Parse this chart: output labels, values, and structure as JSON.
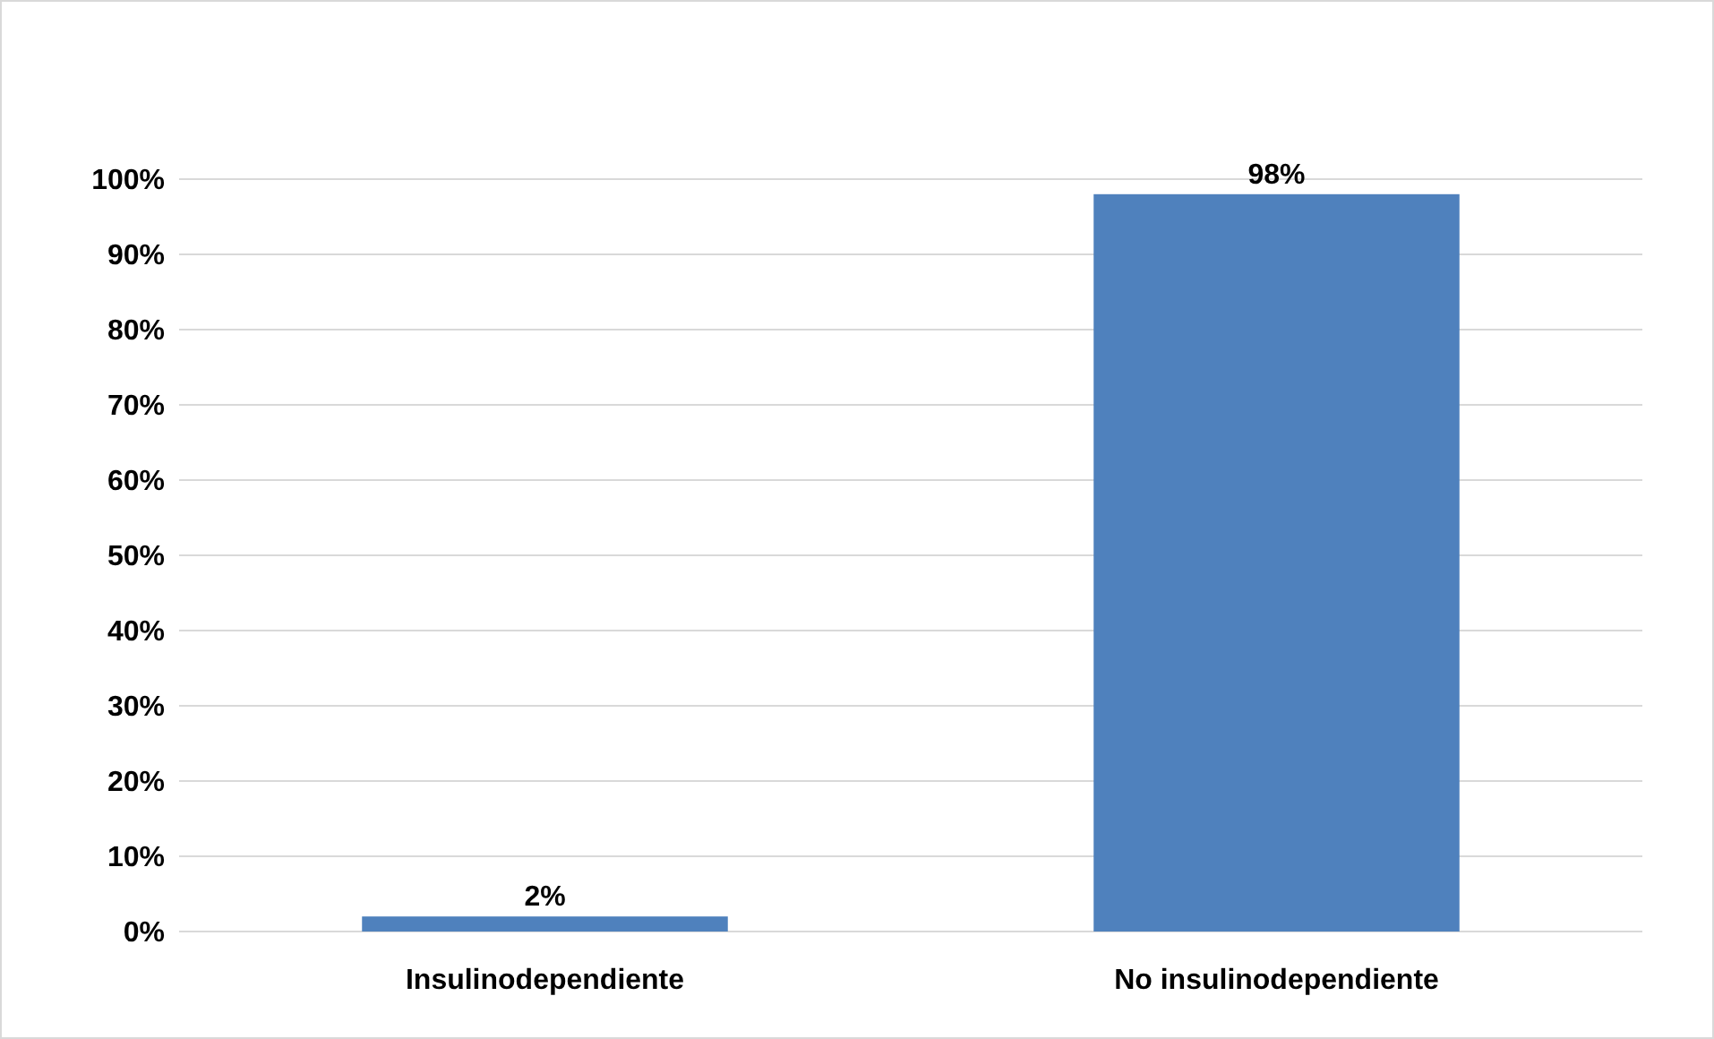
{
  "chart_data": {
    "type": "bar",
    "categories": [
      "Insulinodependiente",
      "No insulinodependiente"
    ],
    "values": [
      2,
      98
    ],
    "color": "#4f81bd",
    "value_labels": [
      "2%",
      "98%"
    ],
    "ylim": [
      0,
      100
    ],
    "yticks": [
      {
        "value": 0,
        "label": "0%"
      },
      {
        "value": 10,
        "label": "10%"
      },
      {
        "value": 20,
        "label": "20%"
      },
      {
        "value": 30,
        "label": "30%"
      },
      {
        "value": 40,
        "label": "40%"
      },
      {
        "value": 50,
        "label": "50%"
      },
      {
        "value": 60,
        "label": "60%"
      },
      {
        "value": 70,
        "label": "70%"
      },
      {
        "value": 80,
        "label": "80%"
      },
      {
        "value": 90,
        "label": "90%"
      },
      {
        "value": 100,
        "label": "100%"
      }
    ],
    "grid": "y"
  }
}
